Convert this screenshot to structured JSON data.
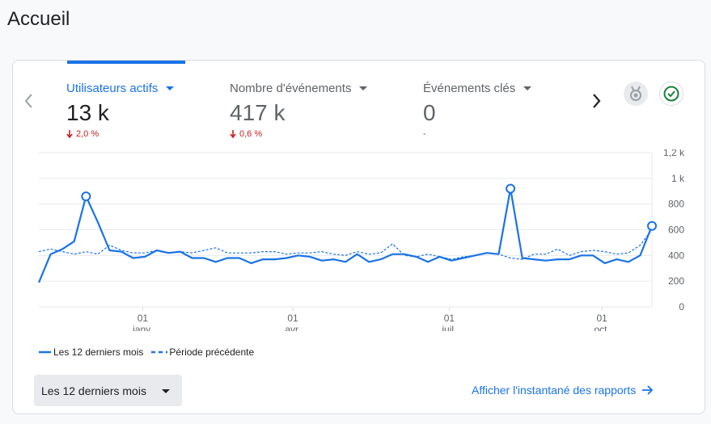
{
  "page": {
    "title": "Accueil"
  },
  "metrics": [
    {
      "label": "Utilisateurs actifs",
      "value": "13 k",
      "change": "2,0 %",
      "direction": "down",
      "active": true
    },
    {
      "label": "Nombre d'événements",
      "value": "417 k",
      "change": "0,6 %",
      "direction": "down",
      "active": false
    },
    {
      "label": "Événements clés",
      "value": "0",
      "change": "-",
      "direction": "none",
      "active": false
    }
  ],
  "icons": {
    "prev": "chevron-left-icon",
    "next": "chevron-right-icon",
    "medal": "medal-icon",
    "check": "check-circle-icon",
    "arrow": "arrow-right-icon"
  },
  "colors": {
    "accent": "#1a73e8",
    "negative": "#c5221f",
    "series_current": "#1a73e8",
    "series_previous": "#1a73e8",
    "check": "#188038"
  },
  "chart_data": {
    "type": "line",
    "y_ticks": [
      "0",
      "200",
      "400",
      "600",
      "800",
      "1 k",
      "1,2 k"
    ],
    "ylim": [
      0,
      1200
    ],
    "grid": true,
    "x_ticks": [
      {
        "day": "01",
        "month": "janv.",
        "x": 8.3
      },
      {
        "day": "01",
        "month": "avr.",
        "x": 20.3
      },
      {
        "day": "01",
        "month": "juil.",
        "x": 32.8
      },
      {
        "day": "01",
        "month": "oct.",
        "x": 45
      }
    ],
    "x_range": [
      0,
      49
    ],
    "series": [
      {
        "name": "Les 12 derniers mois",
        "style": "solid",
        "values": [
          190,
          410,
          450,
          510,
          860,
          660,
          440,
          430,
          380,
          390,
          440,
          420,
          430,
          380,
          380,
          350,
          380,
          380,
          340,
          370,
          370,
          380,
          400,
          390,
          360,
          370,
          350,
          410,
          350,
          370,
          410,
          410,
          390,
          350,
          390,
          360,
          380,
          400,
          420,
          410,
          920,
          380,
          370,
          360,
          370,
          370,
          400,
          400,
          340,
          370,
          350,
          400,
          630
        ],
        "markers": [
          4,
          40,
          52
        ]
      },
      {
        "name": "Période précédente",
        "style": "dashed",
        "values": [
          430,
          450,
          430,
          410,
          430,
          410,
          480,
          440,
          420,
          420,
          440,
          420,
          430,
          420,
          440,
          460,
          420,
          420,
          420,
          430,
          430,
          410,
          420,
          420,
          430,
          410,
          400,
          430,
          410,
          420,
          490,
          400,
          390,
          410,
          390,
          370,
          390,
          400,
          420,
          410,
          380,
          370,
          410,
          410,
          450,
          400,
          430,
          440,
          430,
          410,
          420,
          480,
          600
        ]
      }
    ]
  },
  "footer": {
    "range_label": "Les 12 derniers mois",
    "report_link": "Afficher l'instantané des rapports"
  }
}
